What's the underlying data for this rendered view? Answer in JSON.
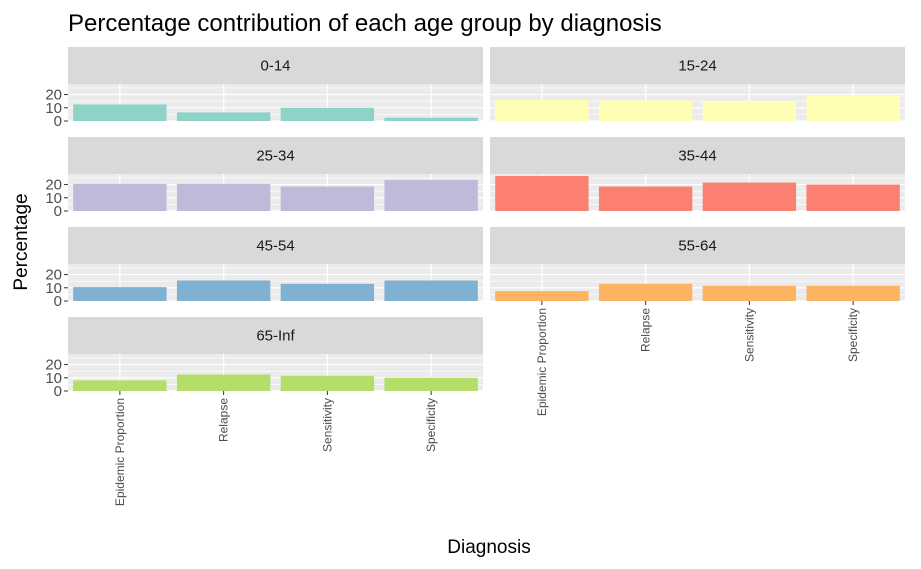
{
  "chart_data": {
    "type": "bar",
    "title": "Percentage contribution of each age group by diagnosis",
    "xlabel": "Diagnosis",
    "ylabel": "Percentage",
    "categories": [
      "Epidemic Proportion",
      "Relapse",
      "Sensitivity",
      "Specificity"
    ],
    "y_ticks": [
      "0",
      "10",
      "20"
    ],
    "ylim": [
      0,
      28
    ],
    "grid": true,
    "legend": "none",
    "facets": [
      {
        "label": "0-14",
        "color": "#8DD3C7",
        "values": [
          12.5,
          6.5,
          10.0,
          2.5
        ]
      },
      {
        "label": "15-24",
        "color": "#FFFFB3",
        "values": [
          16.0,
          15.5,
          15.0,
          19.0
        ]
      },
      {
        "label": "25-34",
        "color": "#BEBADA",
        "values": [
          20.5,
          20.5,
          18.5,
          23.5
        ]
      },
      {
        "label": "35-44",
        "color": "#FB8072",
        "values": [
          26.5,
          18.5,
          21.5,
          20.0
        ]
      },
      {
        "label": "45-54",
        "color": "#80B1D3",
        "values": [
          10.5,
          15.5,
          13.0,
          15.5
        ]
      },
      {
        "label": "55-64",
        "color": "#FDB462",
        "values": [
          7.5,
          13.0,
          11.5,
          11.5
        ]
      },
      {
        "label": "65-Inf",
        "color": "#B3DE69",
        "values": [
          8.0,
          12.5,
          11.5,
          10.0
        ]
      }
    ]
  }
}
